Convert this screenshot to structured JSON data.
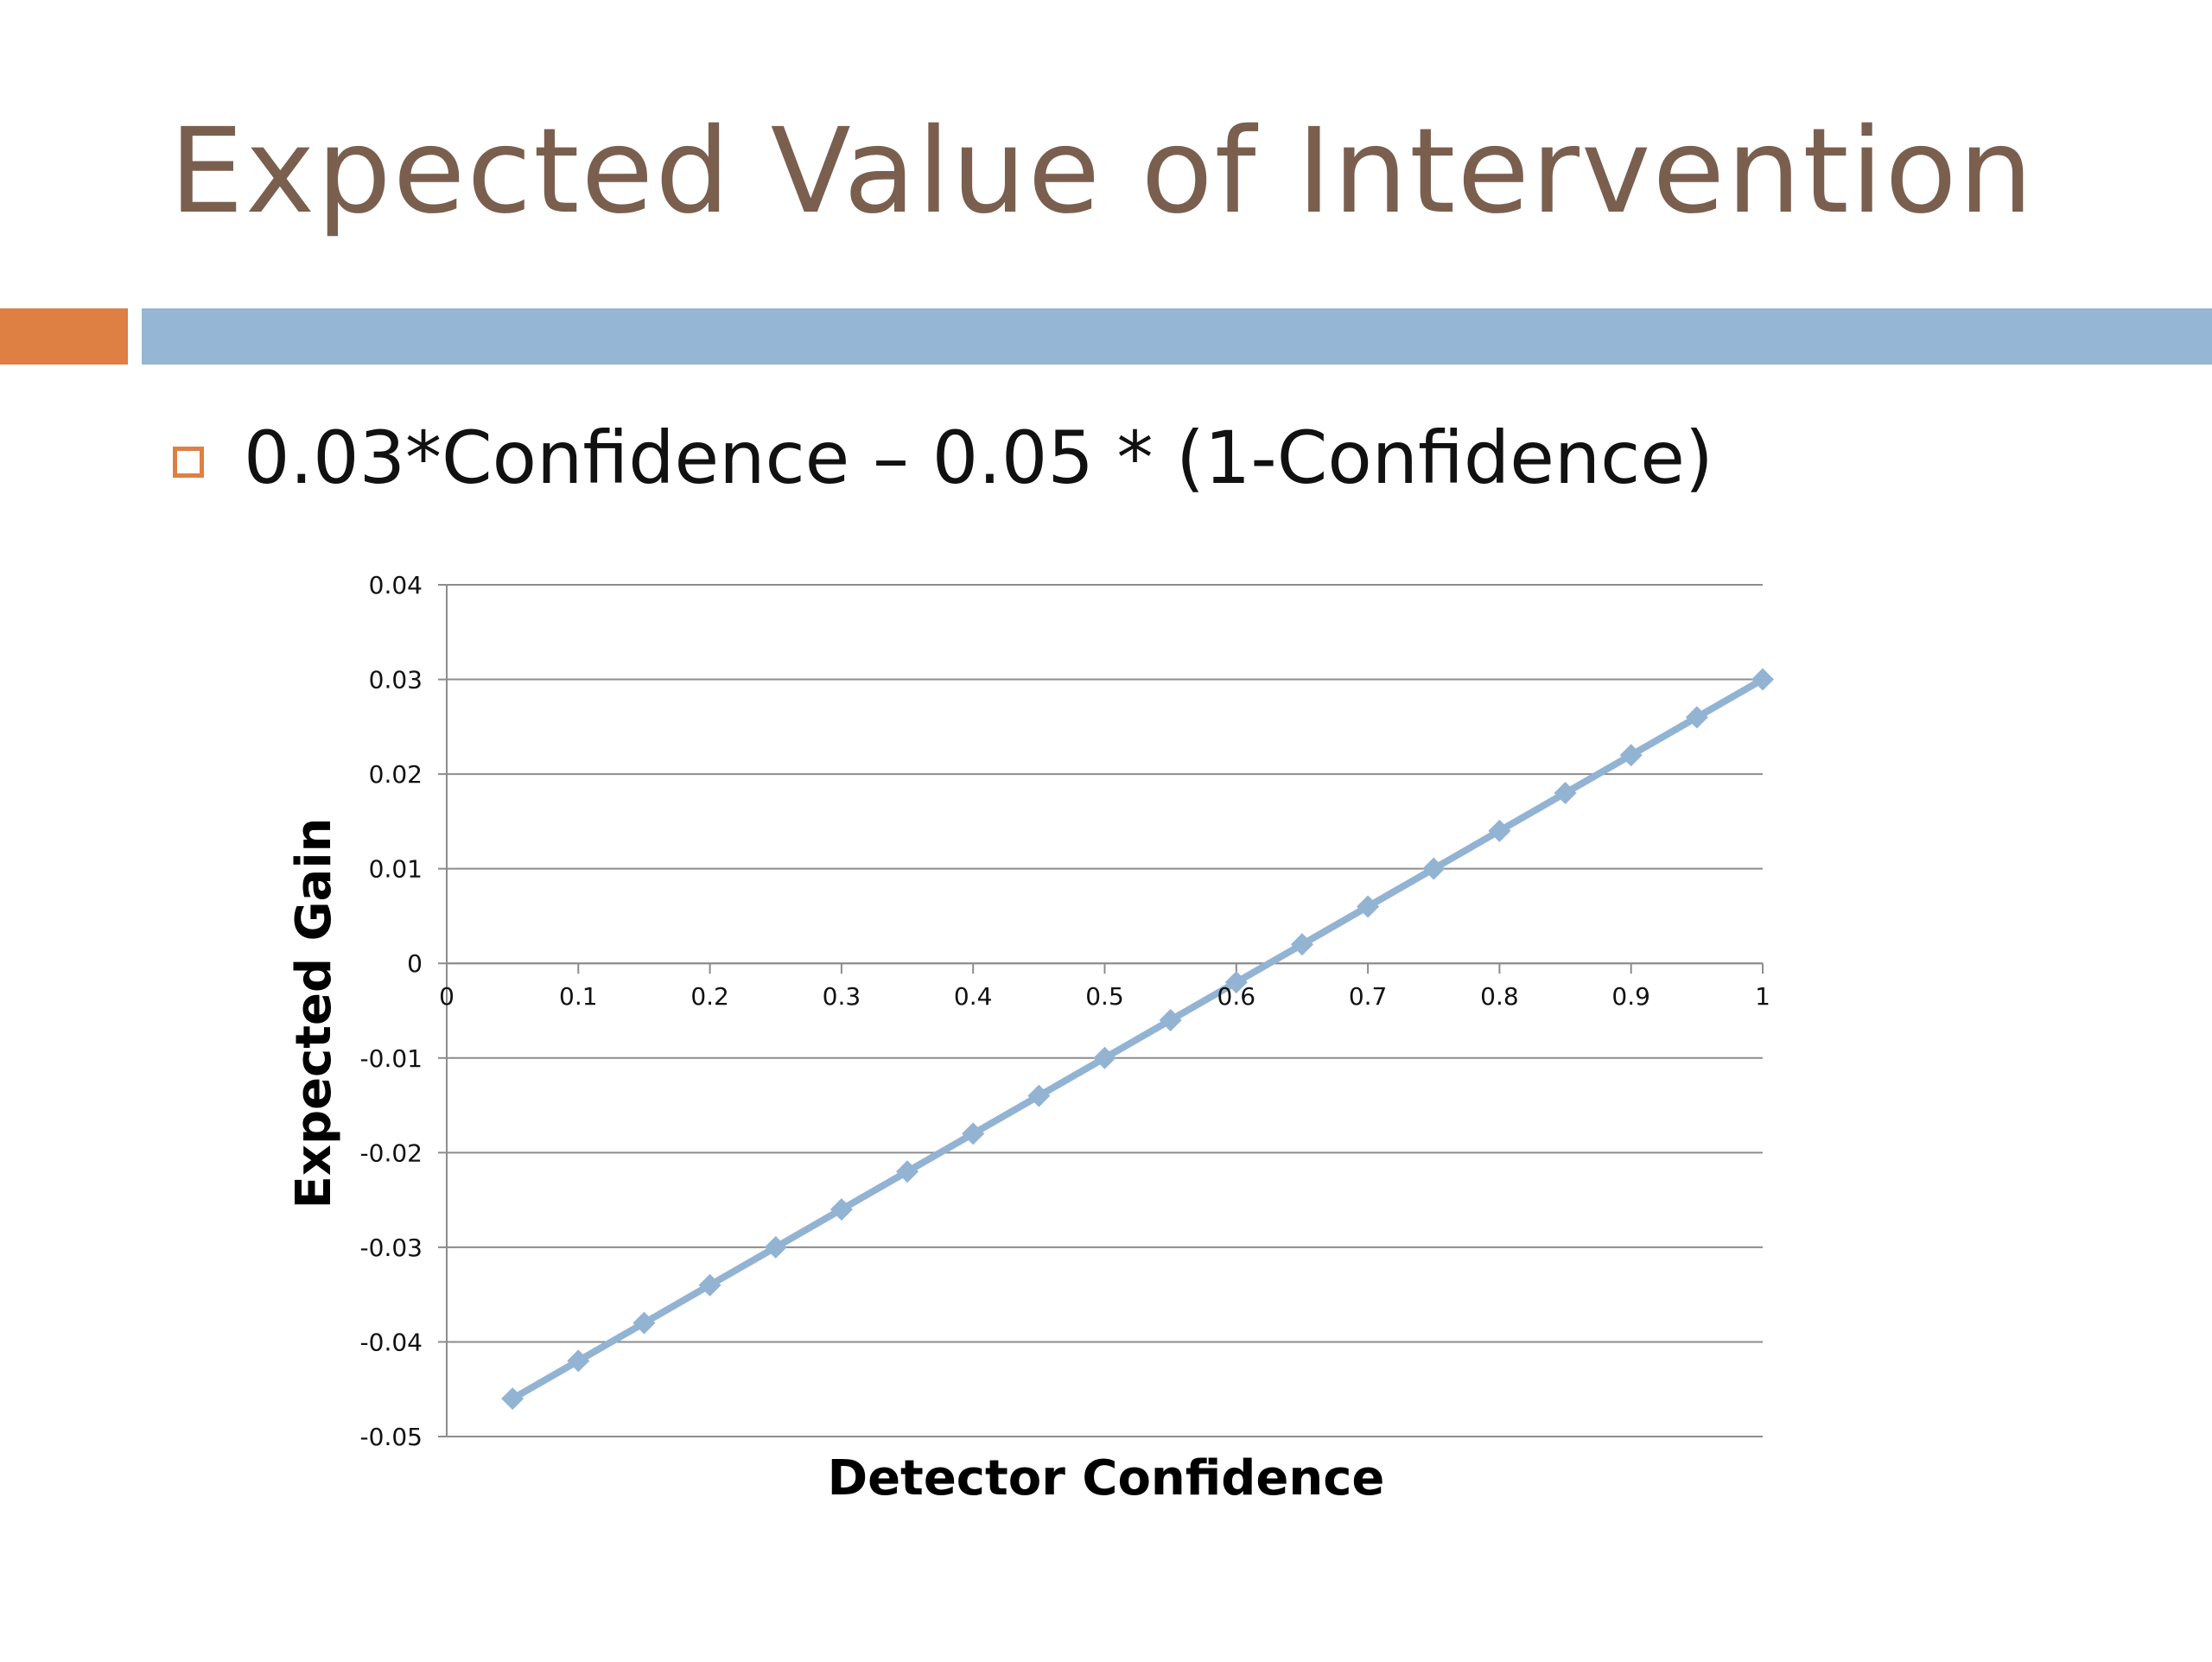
{
  "slide": {
    "title": "Expected Value of Intervention",
    "bullet": "0.03*Confidence – 0.05 * (1-Confidence)"
  },
  "colors": {
    "title": "#7a5f4f",
    "accent": "#de7f44",
    "band": "#95b6d4",
    "bullet_box": "#de7f44",
    "series": "#93b3d3",
    "grid": "#8c8c8c"
  },
  "chart_data": {
    "type": "line",
    "xlabel": "Detector Confidence",
    "ylabel": "Expected Gain",
    "xlim": [
      0,
      1
    ],
    "ylim": [
      -0.05,
      0.04
    ],
    "x_ticks": [
      "0",
      "0.1",
      "0.2",
      "0.3",
      "0.4",
      "0.5",
      "0.6",
      "0.7",
      "0.8",
      "0.9",
      "1"
    ],
    "y_ticks": [
      "0.04",
      "0.03",
      "0.02",
      "0.01",
      "0",
      "-0.01",
      "-0.02",
      "-0.03",
      "-0.04",
      "-0.05"
    ],
    "grid": true,
    "legend": "none",
    "series": [
      {
        "marker": "diamond",
        "x": [
          0.05,
          0.1,
          0.15,
          0.2,
          0.25,
          0.3,
          0.35,
          0.4,
          0.45,
          0.5,
          0.55,
          0.6,
          0.65,
          0.7,
          0.75,
          0.8,
          0.85,
          0.9,
          0.95,
          1.0
        ],
        "y": [
          -0.046,
          -0.042,
          -0.038,
          -0.034,
          -0.03,
          -0.026,
          -0.022,
          -0.018,
          -0.014,
          -0.01,
          -0.006,
          -0.002,
          0.002,
          0.006,
          0.01,
          0.014,
          0.018,
          0.022,
          0.026,
          0.03
        ]
      }
    ]
  }
}
